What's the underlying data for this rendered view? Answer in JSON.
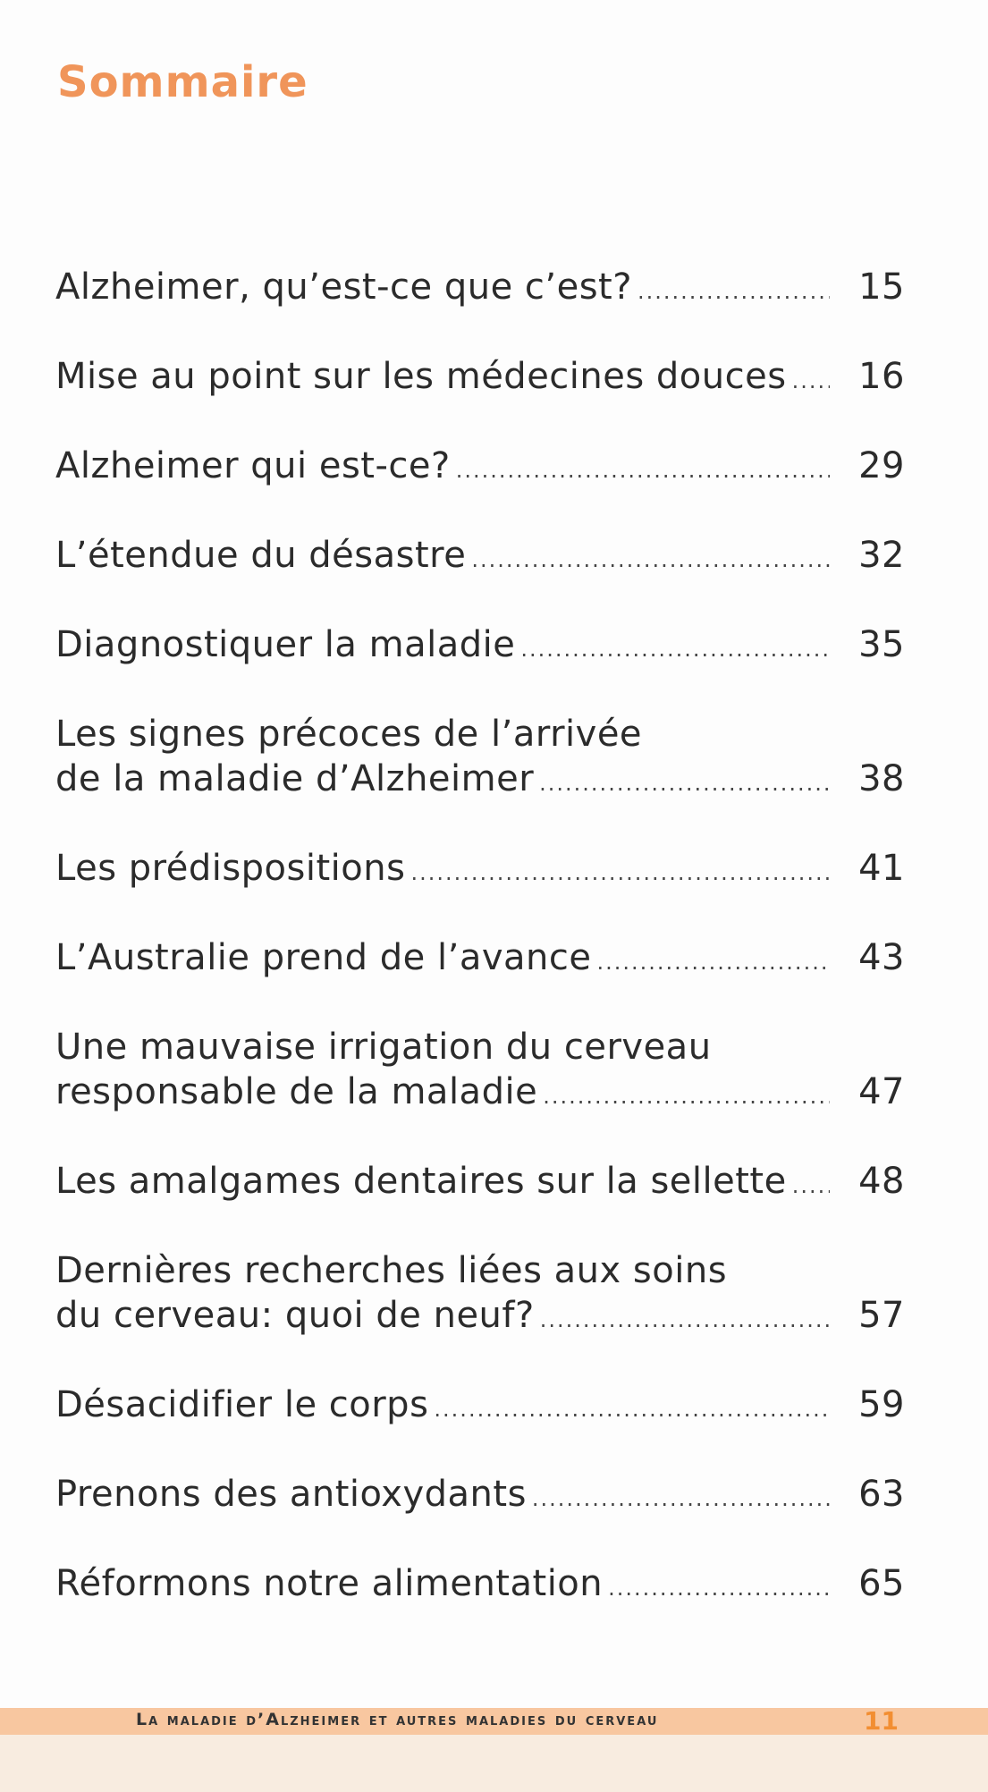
{
  "header": {
    "title": "Sommaire"
  },
  "colors": {
    "title": "#f0955a",
    "footer_band": "#f8c7a0",
    "folio": "#f28e32",
    "text": "#2b2b2b"
  },
  "toc": [
    {
      "lines": [
        "Alzheimer, qu’est-ce que c’est?"
      ],
      "page": "15"
    },
    {
      "lines": [
        "Mise au point sur les médecines douces"
      ],
      "page": "16"
    },
    {
      "lines": [
        "Alzheimer qui est-ce?"
      ],
      "page": "29"
    },
    {
      "lines": [
        "L’étendue du désastre"
      ],
      "page": "32"
    },
    {
      "lines": [
        "Diagnostiquer la maladie"
      ],
      "page": "35"
    },
    {
      "lines": [
        "Les signes précoces de l’arrivée",
        "de la maladie d’Alzheimer"
      ],
      "page": "38"
    },
    {
      "lines": [
        "Les prédispositions"
      ],
      "page": "41"
    },
    {
      "lines": [
        "L’Australie prend de l’avance"
      ],
      "page": "43"
    },
    {
      "lines": [
        "Une mauvaise irrigation du cerveau",
        "responsable de la maladie"
      ],
      "page": "47"
    },
    {
      "lines": [
        "Les amalgames dentaires sur la sellette"
      ],
      "page": "48"
    },
    {
      "lines": [
        "Dernières recherches liées aux soins",
        "du cerveau: quoi de neuf?"
      ],
      "page": "57"
    },
    {
      "lines": [
        "Désacidifier le corps"
      ],
      "page": "59"
    },
    {
      "lines": [
        "Prenons des antioxydants"
      ],
      "page": "63"
    },
    {
      "lines": [
        "Réformons notre alimentation"
      ],
      "page": "65"
    }
  ],
  "footer": {
    "running_title": "La maladie d’Alzheimer et autres maladies du cerveau",
    "page_number": "11"
  }
}
